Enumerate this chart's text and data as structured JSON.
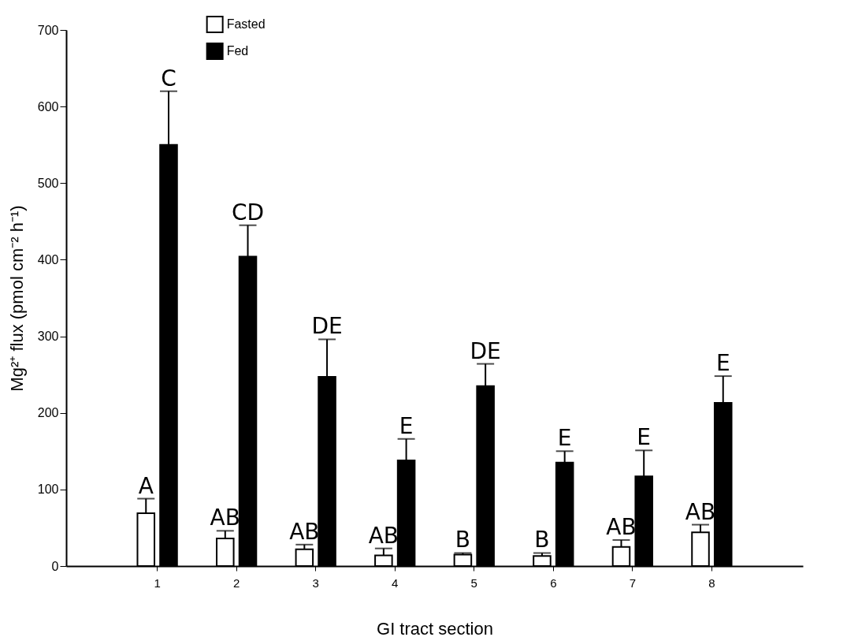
{
  "chart_data": {
    "type": "bar",
    "xlabel": "GI tract section",
    "ylabel": "Mg²⁺ flux (pmol cm⁻² h⁻¹)",
    "categories": [
      "1",
      "2",
      "3",
      "4",
      "5",
      "6",
      "7",
      "8"
    ],
    "series": [
      {
        "name": "Fasted",
        "color": "#ffffff",
        "values": [
          69,
          36,
          22,
          14,
          15,
          13,
          25,
          44
        ],
        "errors": [
          [
            69,
            88
          ],
          [
            36,
            46
          ],
          [
            22,
            28
          ],
          [
            14,
            23
          ],
          [
            15,
            17
          ],
          [
            13,
            17
          ],
          [
            25,
            34
          ],
          [
            44,
            54
          ]
        ],
        "value_labels": [
          "A",
          "AB",
          "AB",
          "AB",
          "B",
          "B",
          "AB",
          "AB"
        ]
      },
      {
        "name": "Fed",
        "color": "#000000",
        "values": [
          550,
          404,
          247,
          138,
          235,
          135,
          117,
          213
        ],
        "errors": [
          [
            550,
            620
          ],
          [
            404,
            445
          ],
          [
            247,
            296
          ],
          [
            138,
            166
          ],
          [
            235,
            264
          ],
          [
            135,
            150
          ],
          [
            117,
            151
          ],
          [
            213,
            248
          ]
        ],
        "value_labels": [
          "C",
          "CD",
          "DE",
          "E",
          "DE",
          "E",
          "E",
          "E"
        ]
      }
    ],
    "ylim": [
      0,
      700
    ],
    "yticks": [
      0,
      100,
      200,
      300,
      400,
      500,
      600,
      700
    ],
    "legend": "top"
  }
}
